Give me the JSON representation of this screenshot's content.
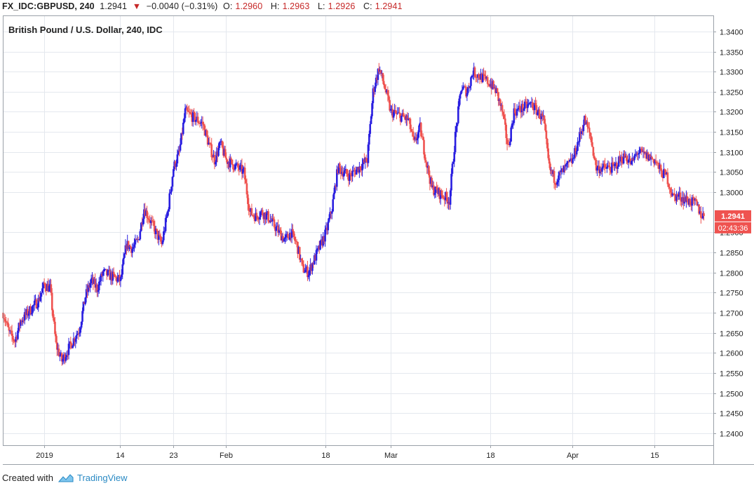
{
  "header": {
    "symbol": "FX_IDC:GBPUSD, 240",
    "last": "1.2941",
    "change": "−0.0040 (−0.31%)",
    "o_label": "O:",
    "o_value": "1.2960",
    "h_label": "H:",
    "h_value": "1.2963",
    "l_label": "L:",
    "l_value": "1.2926",
    "c_label": "C:",
    "c_value": "1.2941"
  },
  "footer": {
    "created": "Created with",
    "brand": "TradingView"
  },
  "colors": {
    "up": "#2a1fe0",
    "down": "#ef5350",
    "grid": "#e4e8ee",
    "axis": "#9aa0a8",
    "badge": "#ef5350"
  },
  "chart_data": {
    "type": "candlestick",
    "title": "British Pound / U.S. Dollar, 240, IDC",
    "ylim": [
      1.237,
      1.344
    ],
    "y_ticks": [
      1.24,
      1.245,
      1.25,
      1.255,
      1.26,
      1.265,
      1.27,
      1.275,
      1.28,
      1.285,
      1.29,
      1.3,
      1.305,
      1.31,
      1.315,
      1.32,
      1.325,
      1.33,
      1.335,
      1.34
    ],
    "y_tick_labels": [
      "1.2400",
      "1.2450",
      "1.2500",
      "1.2550",
      "1.2600",
      "1.2650",
      "1.2700",
      "1.2750",
      "1.2800",
      "1.2850",
      "1.2900",
      "1.3000",
      "1.3050",
      "1.3100",
      "1.3150",
      "1.3200",
      "1.3250",
      "1.3300",
      "1.3350",
      "1.3400"
    ],
    "x_ticks": [
      {
        "label": "2019",
        "date": "2019-01-01"
      },
      {
        "label": "14",
        "date": "2019-01-14"
      },
      {
        "label": "23",
        "date": "2019-01-23"
      },
      {
        "label": "Feb",
        "date": "2019-02-01"
      },
      {
        "label": "18",
        "date": "2019-02-18"
      },
      {
        "label": "Mar",
        "date": "2019-03-01"
      },
      {
        "label": "18",
        "date": "2019-03-18"
      },
      {
        "label": "Apr",
        "date": "2019-04-01"
      },
      {
        "label": "15",
        "date": "2019-04-15"
      }
    ],
    "xlim": [
      "2018-12-25",
      "2019-04-25"
    ],
    "last_price": "1.2941",
    "countdown": "02:43:36",
    "close_path": [
      [
        "2018-12-25",
        1.27
      ],
      [
        "2018-12-26",
        1.265
      ],
      [
        "2018-12-27",
        1.263
      ],
      [
        "2018-12-28",
        1.268
      ],
      [
        "2018-12-31",
        1.273
      ],
      [
        "2019-01-01",
        1.277
      ],
      [
        "2019-01-02",
        1.276
      ],
      [
        "2019-01-03",
        1.262
      ],
      [
        "2019-01-04",
        1.258
      ],
      [
        "2019-01-07",
        1.266
      ],
      [
        "2019-01-08",
        1.274
      ],
      [
        "2019-01-09",
        1.278
      ],
      [
        "2019-01-10",
        1.276
      ],
      [
        "2019-01-11",
        1.28
      ],
      [
        "2019-01-14",
        1.278
      ],
      [
        "2019-01-15",
        1.287
      ],
      [
        "2019-01-16",
        1.286
      ],
      [
        "2019-01-17",
        1.288
      ],
      [
        "2019-01-18",
        1.296
      ],
      [
        "2019-01-21",
        1.287
      ],
      [
        "2019-01-22",
        1.295
      ],
      [
        "2019-01-23",
        1.306
      ],
      [
        "2019-01-24",
        1.31
      ],
      [
        "2019-01-25",
        1.32
      ],
      [
        "2019-01-28",
        1.317
      ],
      [
        "2019-01-29",
        1.312
      ],
      [
        "2019-01-30",
        1.308
      ],
      [
        "2019-01-31",
        1.312
      ],
      [
        "2019-02-01",
        1.308
      ],
      [
        "2019-02-04",
        1.305
      ],
      [
        "2019-02-05",
        1.295
      ],
      [
        "2019-02-06",
        1.294
      ],
      [
        "2019-02-07",
        1.295
      ],
      [
        "2019-02-08",
        1.294
      ],
      [
        "2019-02-11",
        1.288
      ],
      [
        "2019-02-12",
        1.29
      ],
      [
        "2019-02-13",
        1.287
      ],
      [
        "2019-02-14",
        1.281
      ],
      [
        "2019-02-15",
        1.28
      ],
      [
        "2019-02-18",
        1.29
      ],
      [
        "2019-02-19",
        1.296
      ],
      [
        "2019-02-20",
        1.306
      ],
      [
        "2019-02-21",
        1.305
      ],
      [
        "2019-02-22",
        1.304
      ],
      [
        "2019-02-25",
        1.308
      ],
      [
        "2019-02-26",
        1.325
      ],
      [
        "2019-02-27",
        1.331
      ],
      [
        "2019-02-28",
        1.326
      ],
      [
        "2019-03-01",
        1.32
      ],
      [
        "2019-03-04",
        1.318
      ],
      [
        "2019-03-05",
        1.312
      ],
      [
        "2019-03-06",
        1.316
      ],
      [
        "2019-03-07",
        1.308
      ],
      [
        "2019-03-08",
        1.301
      ],
      [
        "2019-03-11",
        1.298
      ],
      [
        "2019-03-12",
        1.314
      ],
      [
        "2019-03-13",
        1.326
      ],
      [
        "2019-03-14",
        1.325
      ],
      [
        "2019-03-15",
        1.33
      ],
      [
        "2019-03-18",
        1.327
      ],
      [
        "2019-03-19",
        1.325
      ],
      [
        "2019-03-20",
        1.32
      ],
      [
        "2019-03-21",
        1.311
      ],
      [
        "2019-03-22",
        1.32
      ],
      [
        "2019-03-25",
        1.322
      ],
      [
        "2019-03-26",
        1.32
      ],
      [
        "2019-03-27",
        1.318
      ],
      [
        "2019-03-28",
        1.306
      ],
      [
        "2019-03-29",
        1.303
      ],
      [
        "2019-04-01",
        1.308
      ],
      [
        "2019-04-02",
        1.313
      ],
      [
        "2019-04-03",
        1.318
      ],
      [
        "2019-04-04",
        1.314
      ],
      [
        "2019-04-05",
        1.306
      ],
      [
        "2019-04-08",
        1.306
      ],
      [
        "2019-04-09",
        1.308
      ],
      [
        "2019-04-10",
        1.309
      ],
      [
        "2019-04-11",
        1.307
      ],
      [
        "2019-04-12",
        1.31
      ],
      [
        "2019-04-15",
        1.308
      ],
      [
        "2019-04-16",
        1.305
      ],
      [
        "2019-04-17",
        1.304
      ],
      [
        "2019-04-18",
        1.299
      ],
      [
        "2019-04-19",
        1.299
      ],
      [
        "2019-04-22",
        1.297
      ],
      [
        "2019-04-23",
        1.2941
      ]
    ]
  }
}
